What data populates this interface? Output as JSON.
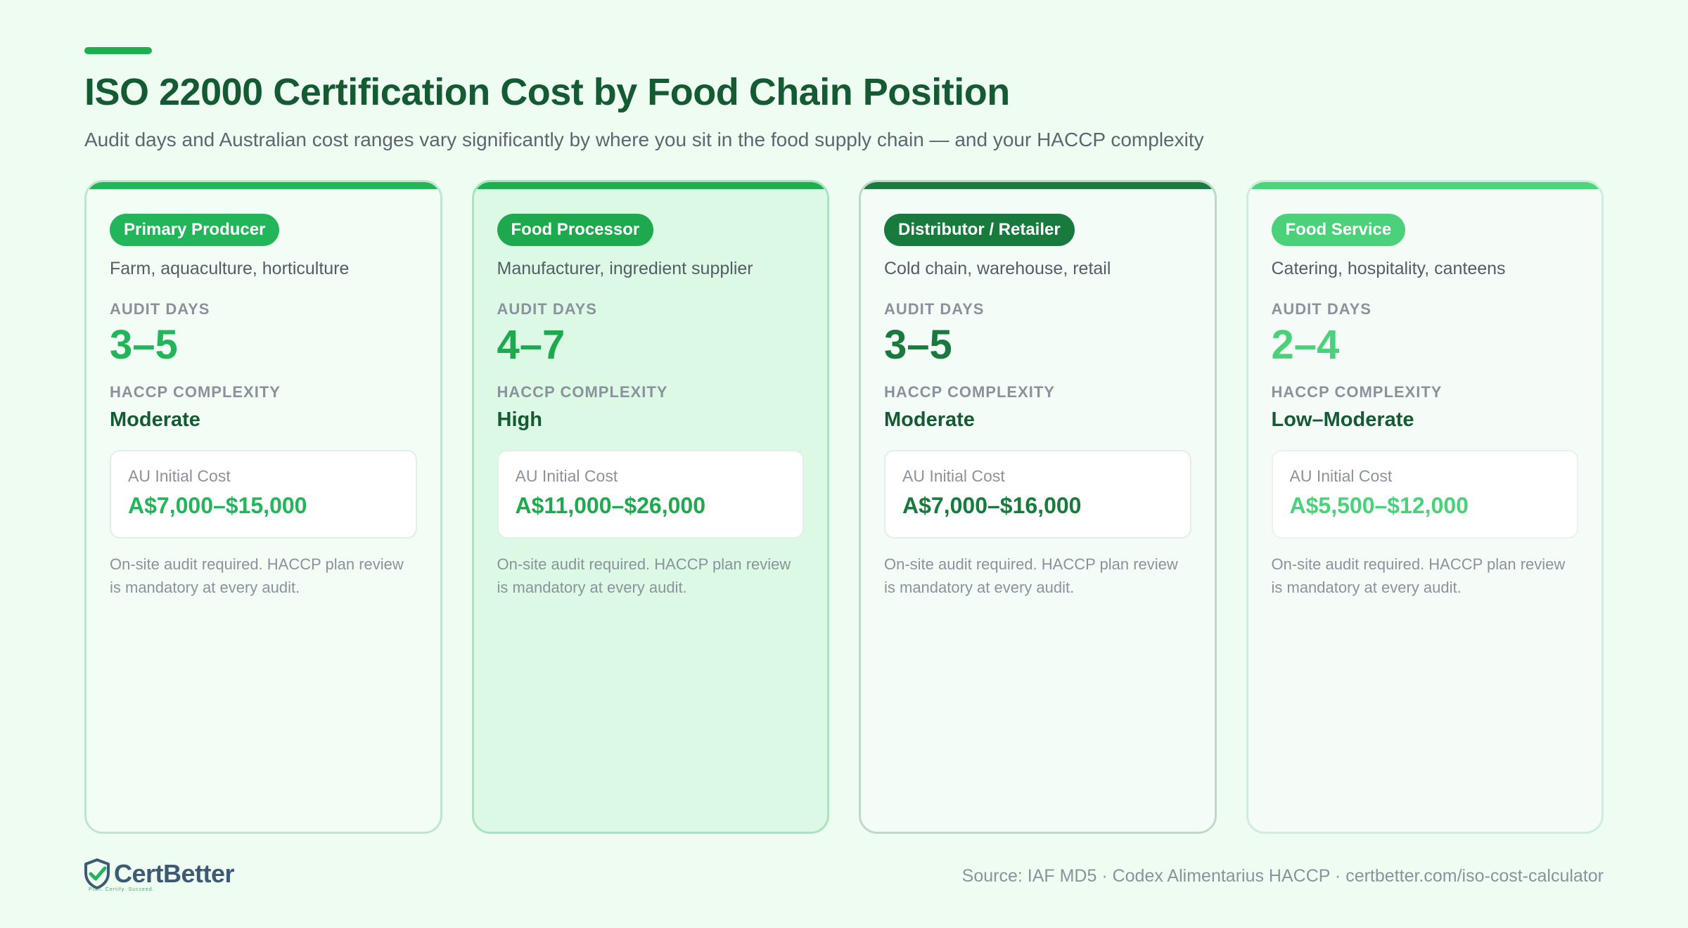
{
  "header": {
    "title": "ISO 22000 Certification Cost by Food Chain Position",
    "subtitle": "Audit days and Australian cost ranges vary significantly by where you sit in the food supply chain — and your HACCP complexity"
  },
  "cards": [
    {
      "badge": "Primary Producer",
      "description": "Farm, aquaculture, horticulture",
      "audit_days_label": "AUDIT DAYS",
      "audit_days": "3–5",
      "haccp_label": "HACCP COMPLEXITY",
      "haccp": "Moderate",
      "cost_label": "AU Initial Cost",
      "cost": "A$7,000–$15,000",
      "note": "On-site audit required. HACCP plan review is mandatory at every audit.",
      "accent": "#22b55a"
    },
    {
      "badge": "Food Processor",
      "description": "Manufacturer, ingredient supplier",
      "audit_days_label": "AUDIT DAYS",
      "audit_days": "4–7",
      "haccp_label": "HACCP COMPLEXITY",
      "haccp": "High",
      "cost_label": "AU Initial Cost",
      "cost": "A$11,000–$26,000",
      "note": "On-site audit required. HACCP plan review is mandatory at every audit.",
      "accent": "#1fa94f"
    },
    {
      "badge": "Distributor / Retailer",
      "description": "Cold chain, warehouse, retail",
      "audit_days_label": "AUDIT DAYS",
      "audit_days": "3–5",
      "haccp_label": "HACCP COMPLEXITY",
      "haccp": "Moderate",
      "cost_label": "AU Initial Cost",
      "cost": "A$7,000–$16,000",
      "note": "On-site audit required. HACCP plan review is mandatory at every audit.",
      "accent": "#187a3c"
    },
    {
      "badge": "Food Service",
      "description": "Catering, hospitality, canteens",
      "audit_days_label": "AUDIT DAYS",
      "audit_days": "2–4",
      "haccp_label": "HACCP COMPLEXITY",
      "haccp": "Low–Moderate",
      "cost_label": "AU Initial Cost",
      "cost": "A$5,500–$12,000",
      "note": "On-site audit required. HACCP plan review is mandatory at every audit.",
      "accent": "#4ad17a"
    }
  ],
  "footer": {
    "logo_text": "CertBetter",
    "logo_icon": "shield-check-icon",
    "tagline": "Plan. Certify. Succeed.",
    "source": "Source: IAF MD5 · Codex Alimentarius HACCP · certbetter.com/iso-cost-calculator"
  }
}
